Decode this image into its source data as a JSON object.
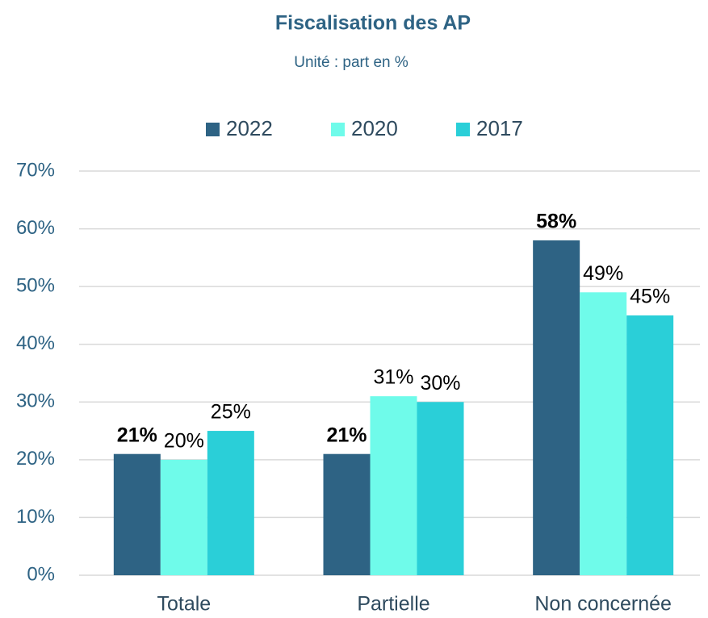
{
  "chart_data": {
    "type": "bar",
    "title": "Fiscalisation des AP",
    "subtitle": "Unité : part en %",
    "categories": [
      "Totale",
      "Partielle",
      "Non concernée"
    ],
    "series": [
      {
        "name": "2022",
        "color": "#2e6384",
        "values": [
          21,
          21,
          58
        ],
        "value_labels": [
          "21%",
          "21%",
          "58%"
        ]
      },
      {
        "name": "2020",
        "color": "#6ffbea",
        "values": [
          20,
          31,
          49
        ],
        "value_labels": [
          "20%",
          "31%",
          "49%"
        ]
      },
      {
        "name": "2017",
        "color": "#2acfd8",
        "values": [
          25,
          30,
          45
        ],
        "value_labels": [
          "25%",
          "30%",
          "45%"
        ]
      }
    ],
    "ylim": [
      0,
      70
    ],
    "yticks": [
      {
        "value": 0,
        "label": "0%"
      },
      {
        "value": 10,
        "label": "10%"
      },
      {
        "value": 20,
        "label": "20%"
      },
      {
        "value": 30,
        "label": "30%"
      },
      {
        "value": 40,
        "label": "40%"
      },
      {
        "value": 50,
        "label": "50%"
      },
      {
        "value": 60,
        "label": "60%"
      },
      {
        "value": 70,
        "label": "70%"
      }
    ],
    "grid": true,
    "legend": "top"
  }
}
